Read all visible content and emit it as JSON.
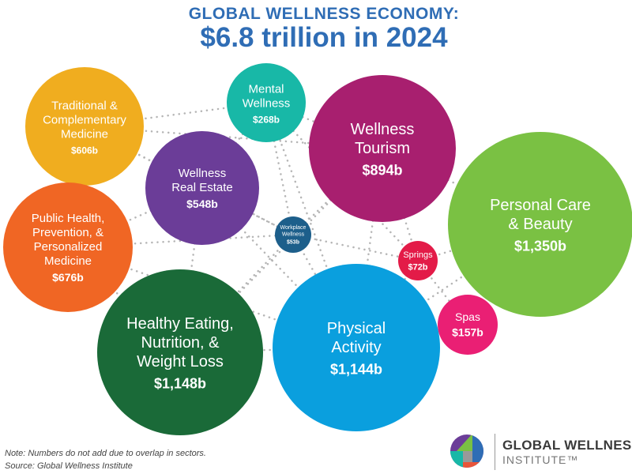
{
  "title": {
    "line1": "GLOBAL WELLNESS ECONOMY:",
    "line2": "$6.8 trillion in 2024"
  },
  "chart_data": {
    "type": "bubble",
    "title": "GLOBAL WELLNESS ECONOMY: $6.8 trillion in 2024",
    "unit": "billion USD",
    "series": [
      {
        "label": [
          "Traditional &",
          "Complementary",
          "Medicine"
        ],
        "value_label": "$606b",
        "value": 606,
        "color": "#f0ad1f"
      },
      {
        "label": [
          "Mental",
          "Wellness"
        ],
        "value_label": "$268b",
        "value": 268,
        "color": "#18b8a7"
      },
      {
        "label": [
          "Wellness",
          "Tourism"
        ],
        "value_label": "$894b",
        "value": 894,
        "color": "#a81f6f"
      },
      {
        "label": [
          "Personal Care",
          "& Beauty"
        ],
        "value_label": "$1,350b",
        "value": 1350,
        "color": "#7ac143"
      },
      {
        "label": [
          "Wellness",
          "Real Estate"
        ],
        "value_label": "$548b",
        "value": 548,
        "color": "#6b3d98"
      },
      {
        "label": [
          "Public Health,",
          "Prevention, &",
          "Personalized",
          "Medicine"
        ],
        "value_label": "$676b",
        "value": 676,
        "color": "#f06624"
      },
      {
        "label": [
          "Workplace",
          "Wellness"
        ],
        "value_label": "$53b",
        "value": 53,
        "color": "#1d5f8b"
      },
      {
        "label": [
          "Springs"
        ],
        "value_label": "$72b",
        "value": 72,
        "color": "#e31b48"
      },
      {
        "label": [
          "Spas"
        ],
        "value_label": "$157b",
        "value": 157,
        "color": "#ea1f74"
      },
      {
        "label": [
          "Healthy Eating,",
          "Nutrition, &",
          "Weight Loss"
        ],
        "value_label": "$1,148b",
        "value": 1148,
        "color": "#1a6a38"
      },
      {
        "label": [
          "Physical",
          "Activity"
        ],
        "value_label": "$1,144b",
        "value": 1144,
        "color": "#0a9fde"
      }
    ]
  },
  "notes": {
    "line1": "Note: Numbers do not add due to overlap in sectors.",
    "line2": "Source: Global Wellness Institute"
  },
  "logo": {
    "name": "GLOBAL WELLNESS",
    "sub": "INSTITUTE™"
  }
}
